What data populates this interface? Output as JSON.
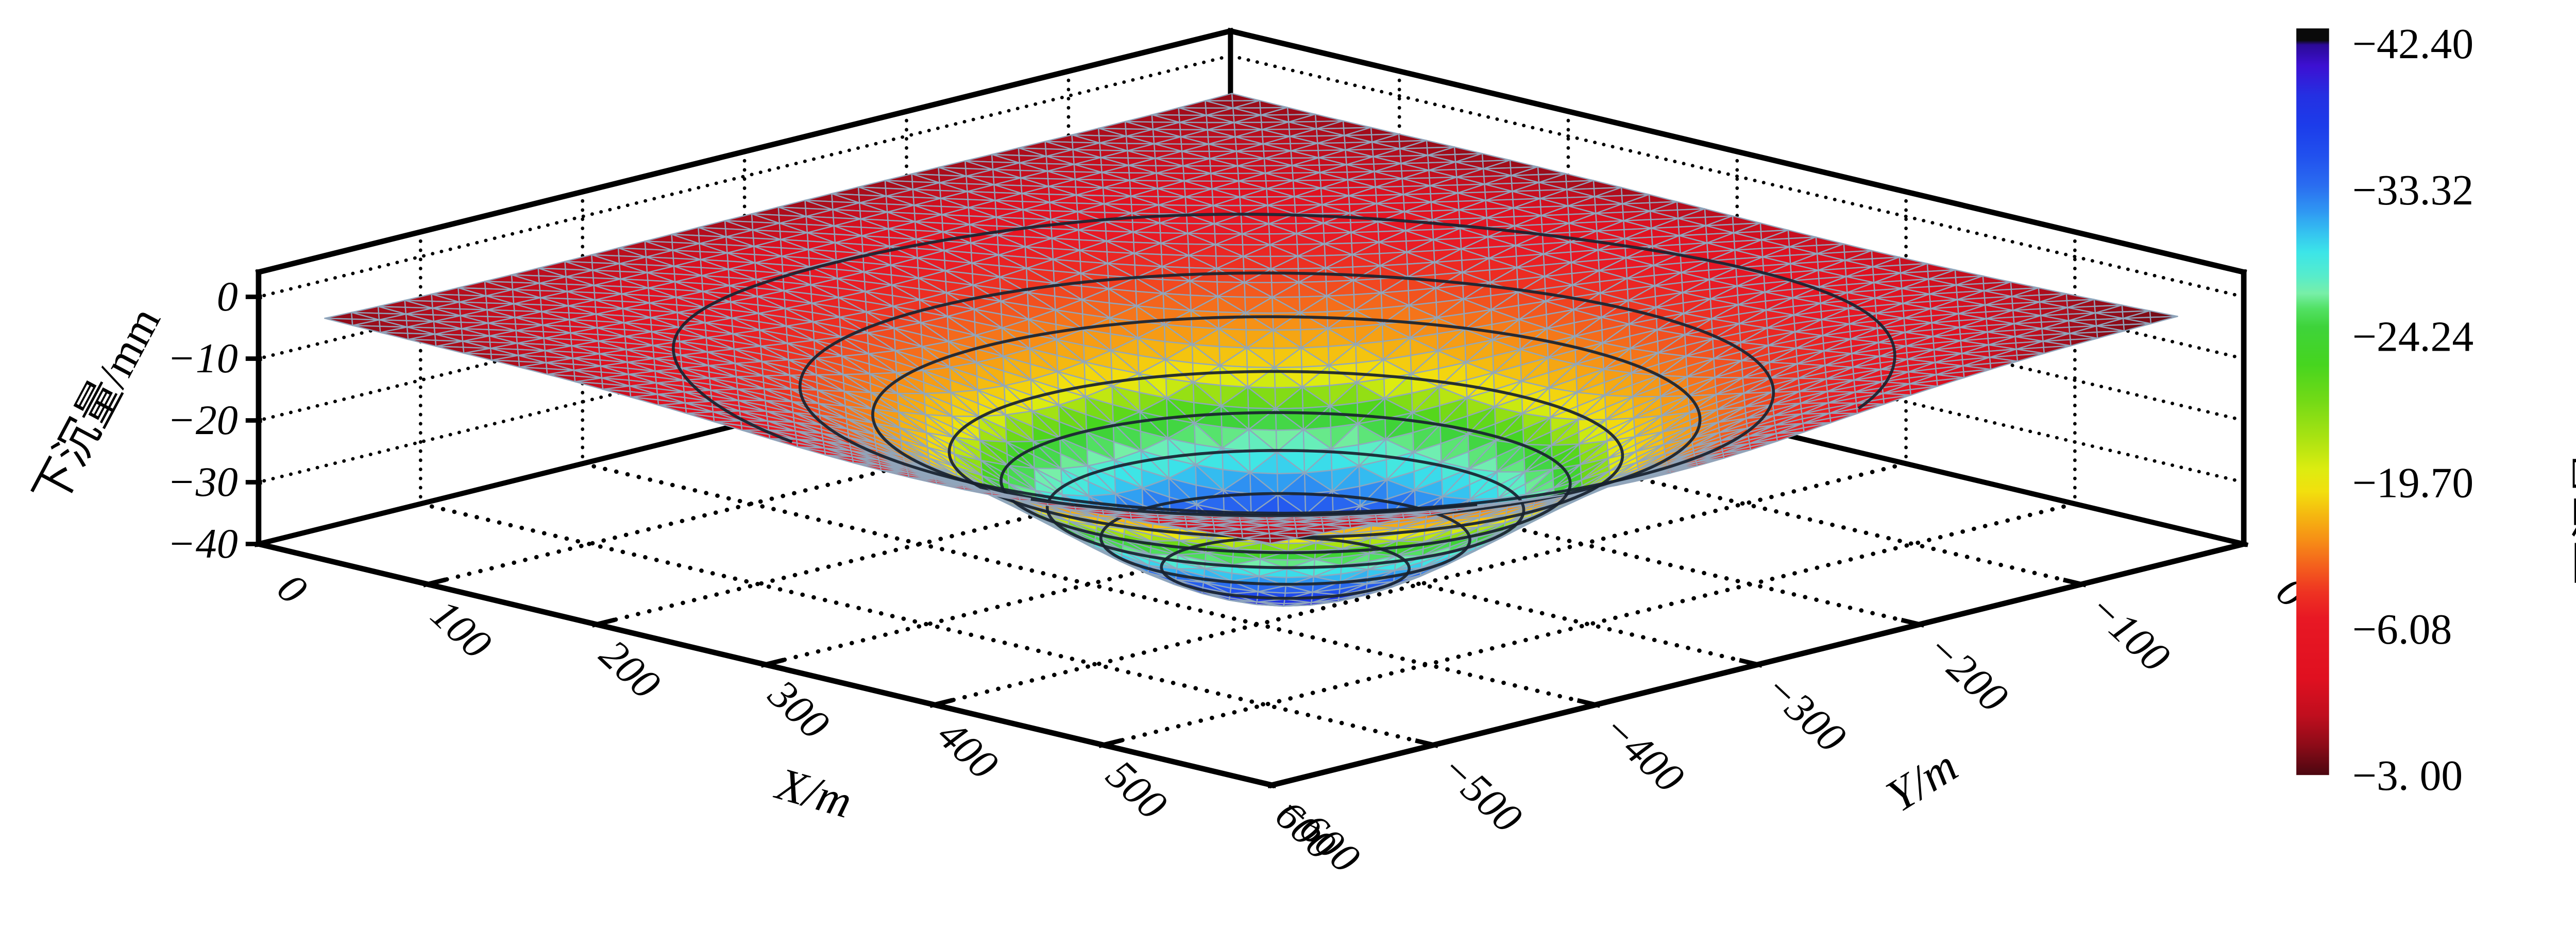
{
  "chart_data": {
    "type": "surface3d",
    "title": "",
    "x_axis": {
      "title": "X/m",
      "ticks": [
        0,
        100,
        200,
        300,
        400,
        500,
        600
      ],
      "range": [
        0,
        600
      ]
    },
    "y_axis": {
      "title": "Y/m",
      "ticks": [
        0,
        -100,
        -200,
        -300,
        -400,
        -500,
        -600
      ],
      "range": [
        -600,
        0
      ]
    },
    "z_axis": {
      "title": "下沉量/mm",
      "ticks": [
        0,
        -10,
        -20,
        -30,
        -40
      ],
      "range": [
        -40,
        4
      ]
    },
    "colorbar": {
      "title": "下沉量/mm",
      "tick_labels": [
        "−42.40",
        "−33.32",
        "−24.24",
        "−19.70",
        "−6.08",
        "−3. 00"
      ],
      "value_anchors": [
        [
          -42.4,
          0.02
        ],
        [
          -33.32,
          0.21
        ],
        [
          -24.24,
          0.41
        ],
        [
          -19.7,
          0.61
        ],
        [
          -6.08,
          0.8
        ],
        [
          -3.0,
          0.99
        ]
      ],
      "gradient": [
        [
          0.0,
          "#0a0a0a"
        ],
        [
          0.016,
          "#0a0a0a"
        ],
        [
          0.022,
          "#2b0a96"
        ],
        [
          0.05,
          "#3d10d2"
        ],
        [
          0.09,
          "#2430e2"
        ],
        [
          0.13,
          "#1c3cea"
        ],
        [
          0.17,
          "#2150ee"
        ],
        [
          0.21,
          "#2a6cf0"
        ],
        [
          0.245,
          "#2f97f2"
        ],
        [
          0.275,
          "#35c4f0"
        ],
        [
          0.3,
          "#3ce5e8"
        ],
        [
          0.33,
          "#55eccd"
        ],
        [
          0.355,
          "#77efa8"
        ],
        [
          0.375,
          "#52e164"
        ],
        [
          0.4,
          "#3ed33a"
        ],
        [
          0.45,
          "#46d51f"
        ],
        [
          0.5,
          "#74da16"
        ],
        [
          0.55,
          "#abe312"
        ],
        [
          0.59,
          "#dcec10"
        ],
        [
          0.62,
          "#f2e00e"
        ],
        [
          0.65,
          "#f5ba10"
        ],
        [
          0.685,
          "#f68f16"
        ],
        [
          0.72,
          "#f4601d"
        ],
        [
          0.755,
          "#ee3322"
        ],
        [
          0.79,
          "#e81824"
        ],
        [
          0.87,
          "#e01020"
        ],
        [
          0.92,
          "#c00e1e"
        ],
        [
          0.96,
          "#8d0b18"
        ],
        [
          1.0,
          "#4b0710"
        ]
      ]
    },
    "surface": {
      "model": "gaussian_basin",
      "domain": {
        "x": [
          20,
          580
        ],
        "y": [
          -580,
          -20
        ]
      },
      "center": [
        360,
        -340
      ],
      "radius_m": 150,
      "min_subsidence_mm": -42.4,
      "edge_subsidence_mm": -3.0,
      "grid_n": 34,
      "contour_levels": [
        -6.08,
        -10,
        -14,
        -19.7,
        -24.24,
        -28.5,
        -33.32,
        -38
      ]
    },
    "style": {
      "mesh_line_color": "#8fa6bd",
      "contour_line_color": "#18222f",
      "grid_dot_color": "#000000",
      "box_edge_color": "#000000",
      "background": "#ffffff"
    }
  }
}
